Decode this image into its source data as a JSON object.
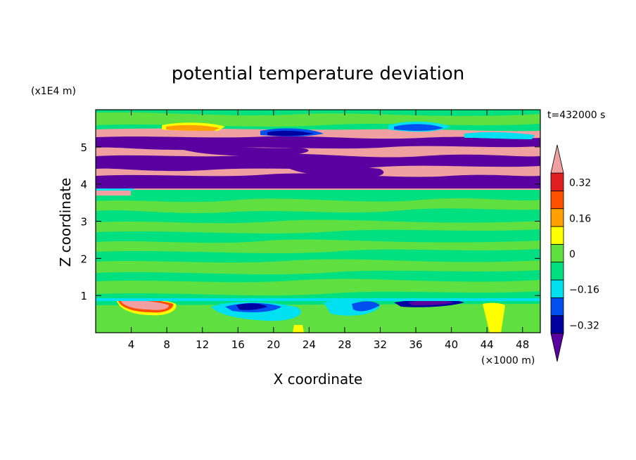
{
  "chart_data": {
    "type": "heatmap",
    "title": "potential temperature deviation",
    "xlabel": "X coordinate",
    "ylabel": "Z coordinate",
    "x_unit": "(×1000 m)",
    "y_unit": "(x1E4 m)",
    "time_label": "t=432000 s",
    "xlim": [
      0,
      50
    ],
    "ylim": [
      0,
      6
    ],
    "x_ticks": [
      "4",
      "8",
      "12",
      "16",
      "20",
      "24",
      "28",
      "32",
      "36",
      "40",
      "44",
      "48"
    ],
    "y_ticks": [
      "1",
      "2",
      "3",
      "4",
      "5"
    ],
    "colorbar": {
      "levels": [
        -0.4,
        -0.32,
        -0.24,
        -0.16,
        -0.08,
        0,
        0.08,
        0.16,
        0.24,
        0.32,
        0.4
      ],
      "colors": [
        "#5a00a0",
        "#0000a0",
        "#0050f0",
        "#00e0f0",
        "#00e080",
        "#60e040",
        "#ffff00",
        "#ffa000",
        "#ff5000",
        "#e02020",
        "#f0a0a0"
      ],
      "tick_labels": [
        "0.32",
        "0.16",
        "0",
        "-0.16",
        "-0.32"
      ],
      "extend": "both"
    },
    "regions": [
      {
        "z_range": [
          0,
          0.9
        ],
        "dominant": "0 to 0.08",
        "features": "negative patches (-0.16 to -0.4) near z=0.8 at x 16-20, 28-31 and 36-40; positive patch (>0.4) at x 3-8 z 0.6-0.9; weak positive plume x 43-46"
      },
      {
        "z_range": [
          0.9,
          3.9
        ],
        "dominant": "-0.08 to 0.08",
        "features": "banded near-zero deviation"
      },
      {
        "z_range": [
          3.9,
          5.5
        ],
        "dominant": "alternating layers below -0.4 and above 0.4",
        "features": "stacked strongly positive / strongly negative layers"
      },
      {
        "z_range": [
          5.5,
          6.0
        ],
        "dominant": "-0.08 to 0.08",
        "features": "blue patches near x 20-24, 30-34, 36-42"
      }
    ]
  }
}
